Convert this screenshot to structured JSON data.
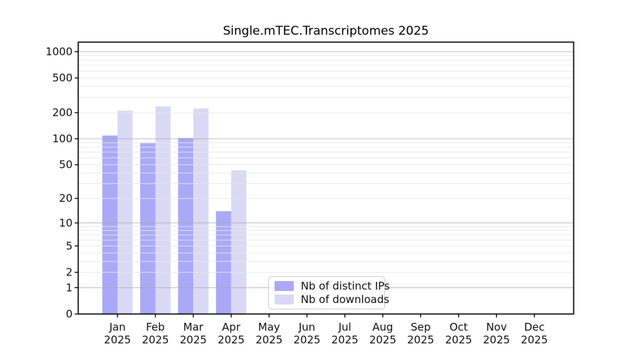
{
  "chart_data": {
    "type": "bar",
    "title": "Single.mTEC.Transcriptomes 2025",
    "categories": [
      "Jan 2025",
      "Feb 2025",
      "Mar 2025",
      "Apr 2025",
      "May 2025",
      "Jun 2025",
      "Jul 2025",
      "Aug 2025",
      "Sep 2025",
      "Oct 2025",
      "Nov 2025",
      "Dec 2025"
    ],
    "series": [
      {
        "name": "Nb of distinct IPs",
        "color": "#a9a9f8",
        "values": [
          109,
          89,
          102,
          14,
          0,
          0,
          0,
          0,
          0,
          0,
          0,
          0
        ]
      },
      {
        "name": "Nb of downloads",
        "color": "#d9d9f6",
        "values": [
          211,
          236,
          223,
          43,
          0,
          0,
          0,
          0,
          0,
          0,
          0,
          0
        ]
      }
    ],
    "xlabel": "",
    "ylabel": "",
    "y_axis": {
      "scale": "log1p",
      "tick_values": [
        0,
        1,
        2,
        5,
        10,
        20,
        50,
        100,
        200,
        500,
        1000
      ],
      "tick_labels": [
        "0",
        "1",
        "2",
        "5",
        "10",
        "20",
        "50",
        "100",
        "200",
        "500",
        "1000"
      ],
      "major_gridline_values": [
        1,
        10,
        100,
        1000
      ]
    },
    "grid": "on",
    "legend": {
      "location": "lower center",
      "entries": [
        "Nb of distinct IPs",
        "Nb of downloads"
      ]
    }
  },
  "colors": {
    "bar_ips": "#a9a9f8",
    "bar_downloads": "#d9d9f6",
    "grid_major": "#a8a8a8",
    "grid_minor": "#e8e8e8",
    "axis_line": "#000000",
    "tick_text": "#111111",
    "background": "#ffffff"
  }
}
